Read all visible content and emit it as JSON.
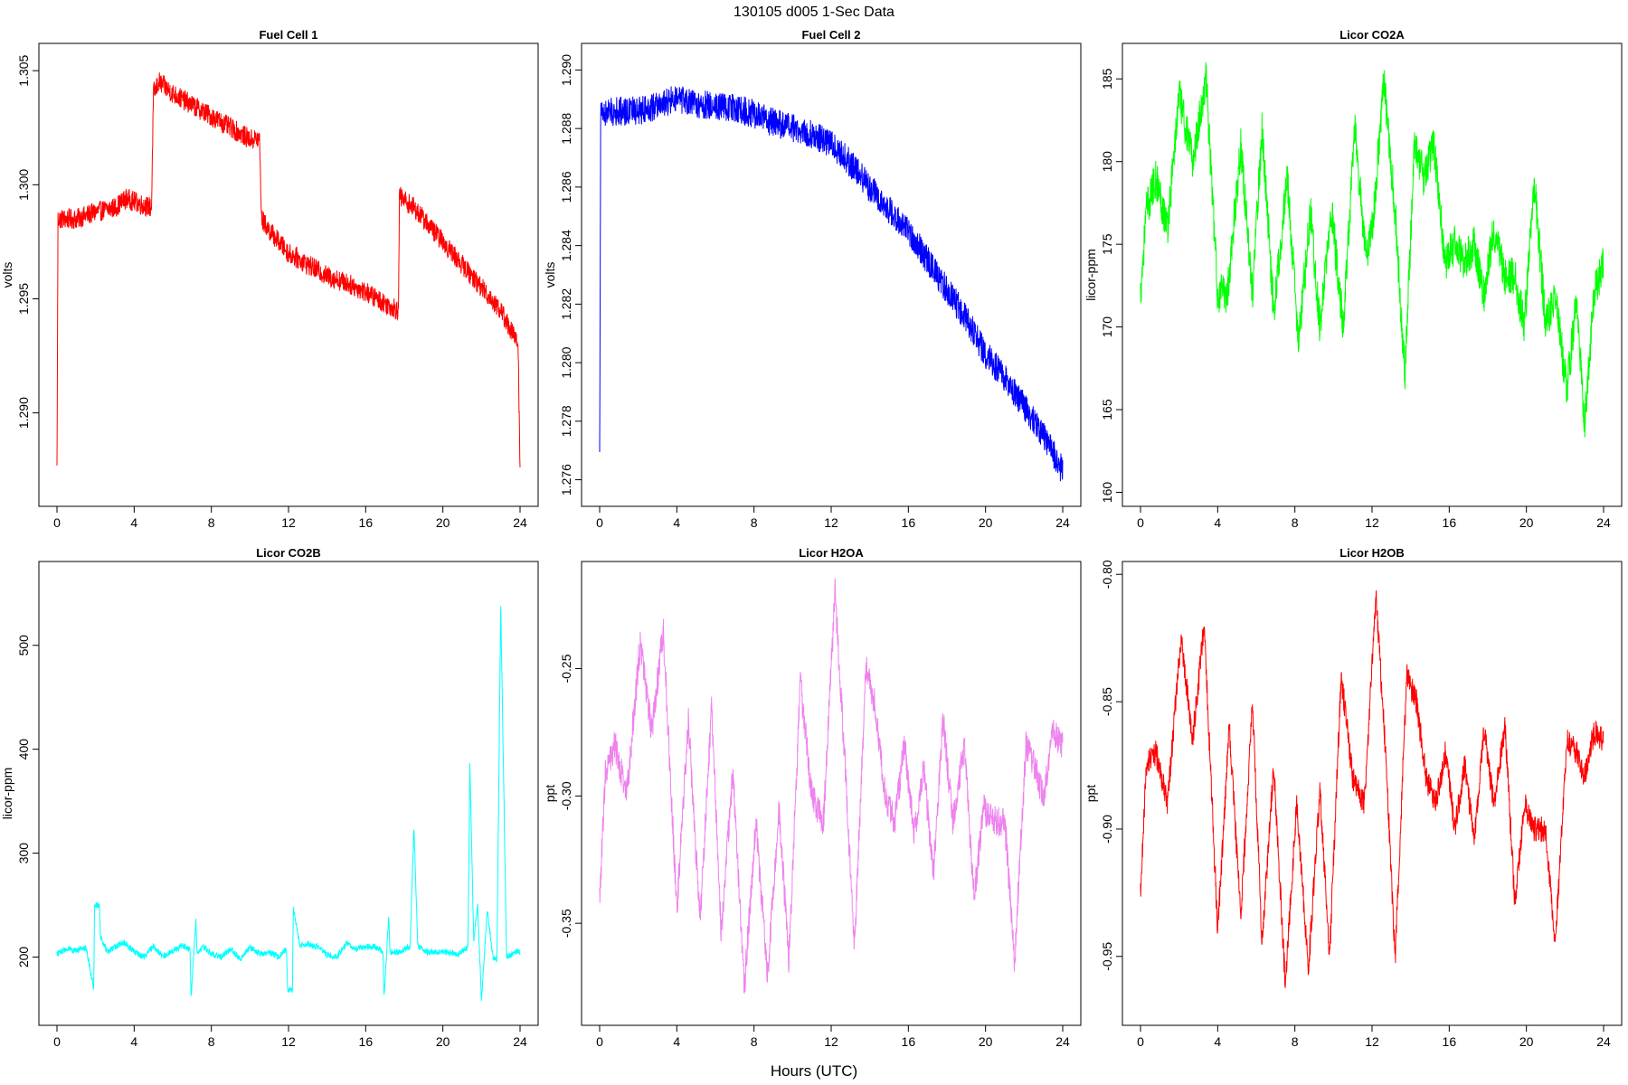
{
  "figure": {
    "title": "130105   d005   1-Sec Data",
    "xlabel": "Hours (UTC)"
  },
  "chart_data": [
    {
      "type": "line",
      "title": "Fuel Cell 1",
      "ylabel": "volts",
      "color": "#ff0000",
      "xlim": [
        0,
        24
      ],
      "ylim": [
        1.2863,
        1.3058
      ],
      "xticks": [
        "0",
        "4",
        "8",
        "12",
        "16",
        "20",
        "24"
      ],
      "yticks": [
        "1.290",
        "1.295",
        "1.300",
        "1.305"
      ],
      "ytick_values": [
        1.29,
        1.295,
        1.3,
        1.305
      ],
      "noise": 0.00045,
      "series": [
        {
          "x": [
            0,
            0.05,
            0.1,
            1,
            2,
            3,
            3.6,
            4.5,
            4.9,
            5.0,
            5.3,
            6,
            7,
            8,
            9,
            10,
            10.5,
            10.6,
            11,
            12,
            13,
            14,
            15,
            16,
            17,
            17.7,
            17.75,
            18.5,
            19,
            20,
            21,
            22,
            23,
            23.9,
            24
          ],
          "y": [
            1.2875,
            1.2985,
            1.2985,
            1.2985,
            1.2988,
            1.299,
            1.2994,
            1.2991,
            1.299,
            1.304,
            1.3045,
            1.304,
            1.3035,
            1.303,
            1.3025,
            1.302,
            1.302,
            1.2985,
            1.298,
            1.297,
            1.2965,
            1.296,
            1.2957,
            1.2953,
            1.2948,
            1.2945,
            1.2995,
            1.299,
            1.2985,
            1.2975,
            1.2965,
            1.2955,
            1.2945,
            1.293,
            1.2875
          ]
        }
      ]
    },
    {
      "type": "line",
      "title": "Fuel Cell 2",
      "ylabel": "volts",
      "color": "#0000ff",
      "xlim": [
        0,
        24
      ],
      "ylim": [
        1.2754,
        1.2906
      ],
      "xticks": [
        "0",
        "4",
        "8",
        "12",
        "16",
        "20",
        "24"
      ],
      "yticks": [
        "1.276",
        "1.278",
        "1.280",
        "1.282",
        "1.284",
        "1.286",
        "1.288",
        "1.290"
      ],
      "ytick_values": [
        1.276,
        1.278,
        1.28,
        1.282,
        1.284,
        1.286,
        1.288,
        1.29
      ],
      "noise": 0.0005,
      "series": [
        {
          "x": [
            0,
            0.05,
            0.1,
            1,
            2,
            3,
            4,
            5,
            6,
            7,
            8,
            9,
            10,
            11,
            12,
            13,
            14,
            15,
            16,
            17,
            18,
            19,
            20,
            21,
            22,
            23,
            24
          ],
          "y": [
            1.2767,
            1.2885,
            1.2885,
            1.2886,
            1.2886,
            1.2888,
            1.289,
            1.2888,
            1.2888,
            1.2887,
            1.2885,
            1.2882,
            1.288,
            1.2878,
            1.2875,
            1.2868,
            1.286,
            1.2852,
            1.2845,
            1.2835,
            1.2825,
            1.2815,
            1.2803,
            1.2795,
            1.2785,
            1.2775,
            1.2763
          ]
        }
      ]
    },
    {
      "type": "line",
      "title": "Licor CO2A",
      "ylabel": "licor-ppm",
      "color": "#00ff00",
      "xlim": [
        0,
        24
      ],
      "ylim": [
        159.7,
        186.6
      ],
      "xticks": [
        "0",
        "4",
        "8",
        "12",
        "16",
        "20",
        "24"
      ],
      "yticks": [
        "160",
        "165",
        "170",
        "175",
        "180",
        "185"
      ],
      "ytick_values": [
        160,
        165,
        170,
        175,
        180,
        185
      ],
      "noise": 1.2,
      "series": [
        {
          "x": [
            0,
            0.3,
            0.8,
            1.4,
            2.0,
            2.7,
            3.4,
            4.0,
            4.5,
            5.2,
            5.8,
            6.3,
            6.9,
            7.6,
            8.2,
            8.8,
            9.3,
            9.9,
            10.5,
            11.1,
            11.7,
            12.1,
            12.6,
            13.2,
            13.7,
            14.2,
            14.7,
            15.2,
            15.8,
            16.3,
            16.8,
            17.3,
            17.8,
            18.3,
            18.9,
            19.4,
            19.9,
            20.4,
            21.0,
            21.5,
            22.1,
            22.6,
            23.0,
            23.5,
            24
          ],
          "y": [
            172,
            177,
            179,
            176,
            184,
            180,
            185,
            172,
            172,
            181,
            172,
            182,
            171,
            179,
            169,
            177,
            170,
            177,
            170,
            182,
            174,
            177,
            185,
            177,
            167,
            181,
            179,
            181,
            174,
            175,
            174,
            175,
            172,
            176,
            173,
            173,
            170,
            179,
            170,
            172,
            166,
            172,
            164,
            172,
            174
          ]
        }
      ]
    },
    {
      "type": "line",
      "title": "Licor CO2B",
      "ylabel": "licor-ppm",
      "color": "#00ffff",
      "xlim": [
        0,
        24
      ],
      "ylim": [
        143,
        572
      ],
      "xticks": [
        "0",
        "4",
        "8",
        "12",
        "16",
        "20",
        "24"
      ],
      "yticks": [
        "200",
        "300",
        "400",
        "500"
      ],
      "ytick_values": [
        200,
        300,
        400,
        500
      ],
      "noise": 3,
      "series": [
        {
          "x": [
            0,
            0.5,
            1,
            1.5,
            1.9,
            1.95,
            2.2,
            2.25,
            2.6,
            3,
            3.5,
            4,
            4.5,
            5,
            5.5,
            6,
            6.5,
            6.9,
            6.95,
            7.2,
            7.25,
            7.6,
            8,
            8.5,
            9,
            9.5,
            10,
            10.5,
            11,
            11.5,
            11.9,
            11.95,
            12.2,
            12.25,
            12.6,
            13,
            13.5,
            14,
            14.5,
            15,
            15.5,
            16,
            16.5,
            16.9,
            16.95,
            17.2,
            17.25,
            17.7,
            18.3,
            18.5,
            18.7,
            19.2,
            20,
            20.8,
            21.3,
            21.4,
            21.6,
            21.8,
            22.0,
            22.3,
            22.6,
            22.8,
            23.0,
            23.3,
            23.8,
            24
          ],
          "y": [
            203,
            208,
            206,
            209,
            170,
            250,
            250,
            220,
            205,
            210,
            214,
            205,
            200,
            211,
            200,
            206,
            211,
            207,
            160,
            237,
            205,
            210,
            203,
            200,
            208,
            198,
            210,
            203,
            205,
            200,
            208,
            168,
            168,
            246,
            212,
            212,
            210,
            202,
            200,
            213,
            208,
            210,
            210,
            205,
            163,
            240,
            205,
            205,
            210,
            325,
            210,
            205,
            205,
            203,
            210,
            385,
            215,
            250,
            160,
            245,
            200,
            198,
            540,
            200,
            205,
            205
          ]
        }
      ]
    },
    {
      "type": "line",
      "title": "Licor H2OA",
      "ylabel": "ppt",
      "color": "#ee82ee",
      "xlim": [
        0,
        24
      ],
      "ylim": [
        -0.3865,
        -0.2115
      ],
      "xticks": [
        "0",
        "4",
        "8",
        "12",
        "16",
        "20",
        "24"
      ],
      "yticks": [
        "-0.35",
        "-0.30",
        "-0.25"
      ],
      "ytick_values": [
        -0.35,
        -0.3,
        -0.25
      ],
      "noise": 0.006,
      "series": [
        {
          "x": [
            0,
            0.3,
            0.8,
            1.4,
            2.1,
            2.7,
            3.3,
            4.0,
            4.6,
            5.2,
            5.8,
            6.3,
            6.9,
            7.5,
            8.1,
            8.7,
            9.3,
            9.8,
            10.4,
            11.0,
            11.6,
            12.2,
            12.7,
            13.2,
            13.8,
            14.3,
            14.8,
            15.3,
            15.8,
            16.3,
            16.8,
            17.3,
            17.8,
            18.3,
            18.9,
            19.4,
            19.9,
            20.4,
            21.0,
            21.5,
            22.1,
            22.6,
            23.0,
            23.5,
            24
          ],
          "y": [
            -0.34,
            -0.29,
            -0.28,
            -0.3,
            -0.24,
            -0.275,
            -0.235,
            -0.345,
            -0.27,
            -0.35,
            -0.265,
            -0.355,
            -0.29,
            -0.375,
            -0.31,
            -0.37,
            -0.305,
            -0.365,
            -0.255,
            -0.3,
            -0.31,
            -0.22,
            -0.285,
            -0.36,
            -0.25,
            -0.265,
            -0.3,
            -0.31,
            -0.28,
            -0.315,
            -0.29,
            -0.33,
            -0.27,
            -0.31,
            -0.28,
            -0.34,
            -0.305,
            -0.31,
            -0.31,
            -0.365,
            -0.28,
            -0.29,
            -0.3,
            -0.275,
            -0.28
          ]
        }
      ]
    },
    {
      "type": "line",
      "title": "Licor H2OB",
      "ylabel": "ppt",
      "color": "#ff0000",
      "xlim": [
        0,
        24
      ],
      "ylim": [
        -0.9735,
        -0.7985
      ],
      "xticks": [
        "0",
        "4",
        "8",
        "12",
        "16",
        "20",
        "24"
      ],
      "yticks": [
        "-0.95",
        "-0.90",
        "-0.85",
        "-0.80"
      ],
      "ytick_values": [
        -0.95,
        -0.9,
        -0.85,
        -0.8
      ],
      "noise": 0.005,
      "series": [
        {
          "x": [
            0,
            0.3,
            0.8,
            1.4,
            2.1,
            2.7,
            3.3,
            4.0,
            4.6,
            5.2,
            5.8,
            6.3,
            6.9,
            7.5,
            8.1,
            8.7,
            9.3,
            9.8,
            10.4,
            11.0,
            11.6,
            12.2,
            12.7,
            13.2,
            13.8,
            14.3,
            14.8,
            15.3,
            15.8,
            16.3,
            16.8,
            17.3,
            17.8,
            18.3,
            18.9,
            19.4,
            19.9,
            20.4,
            21.0,
            21.5,
            22.1,
            22.6,
            23.0,
            23.5,
            24
          ],
          "y": [
            -0.925,
            -0.875,
            -0.87,
            -0.89,
            -0.825,
            -0.865,
            -0.82,
            -0.94,
            -0.86,
            -0.935,
            -0.85,
            -0.945,
            -0.875,
            -0.96,
            -0.89,
            -0.955,
            -0.885,
            -0.95,
            -0.84,
            -0.88,
            -0.89,
            -0.808,
            -0.87,
            -0.95,
            -0.84,
            -0.85,
            -0.88,
            -0.89,
            -0.87,
            -0.9,
            -0.875,
            -0.905,
            -0.86,
            -0.89,
            -0.86,
            -0.93,
            -0.89,
            -0.9,
            -0.9,
            -0.945,
            -0.865,
            -0.87,
            -0.88,
            -0.862,
            -0.865
          ]
        }
      ]
    }
  ]
}
